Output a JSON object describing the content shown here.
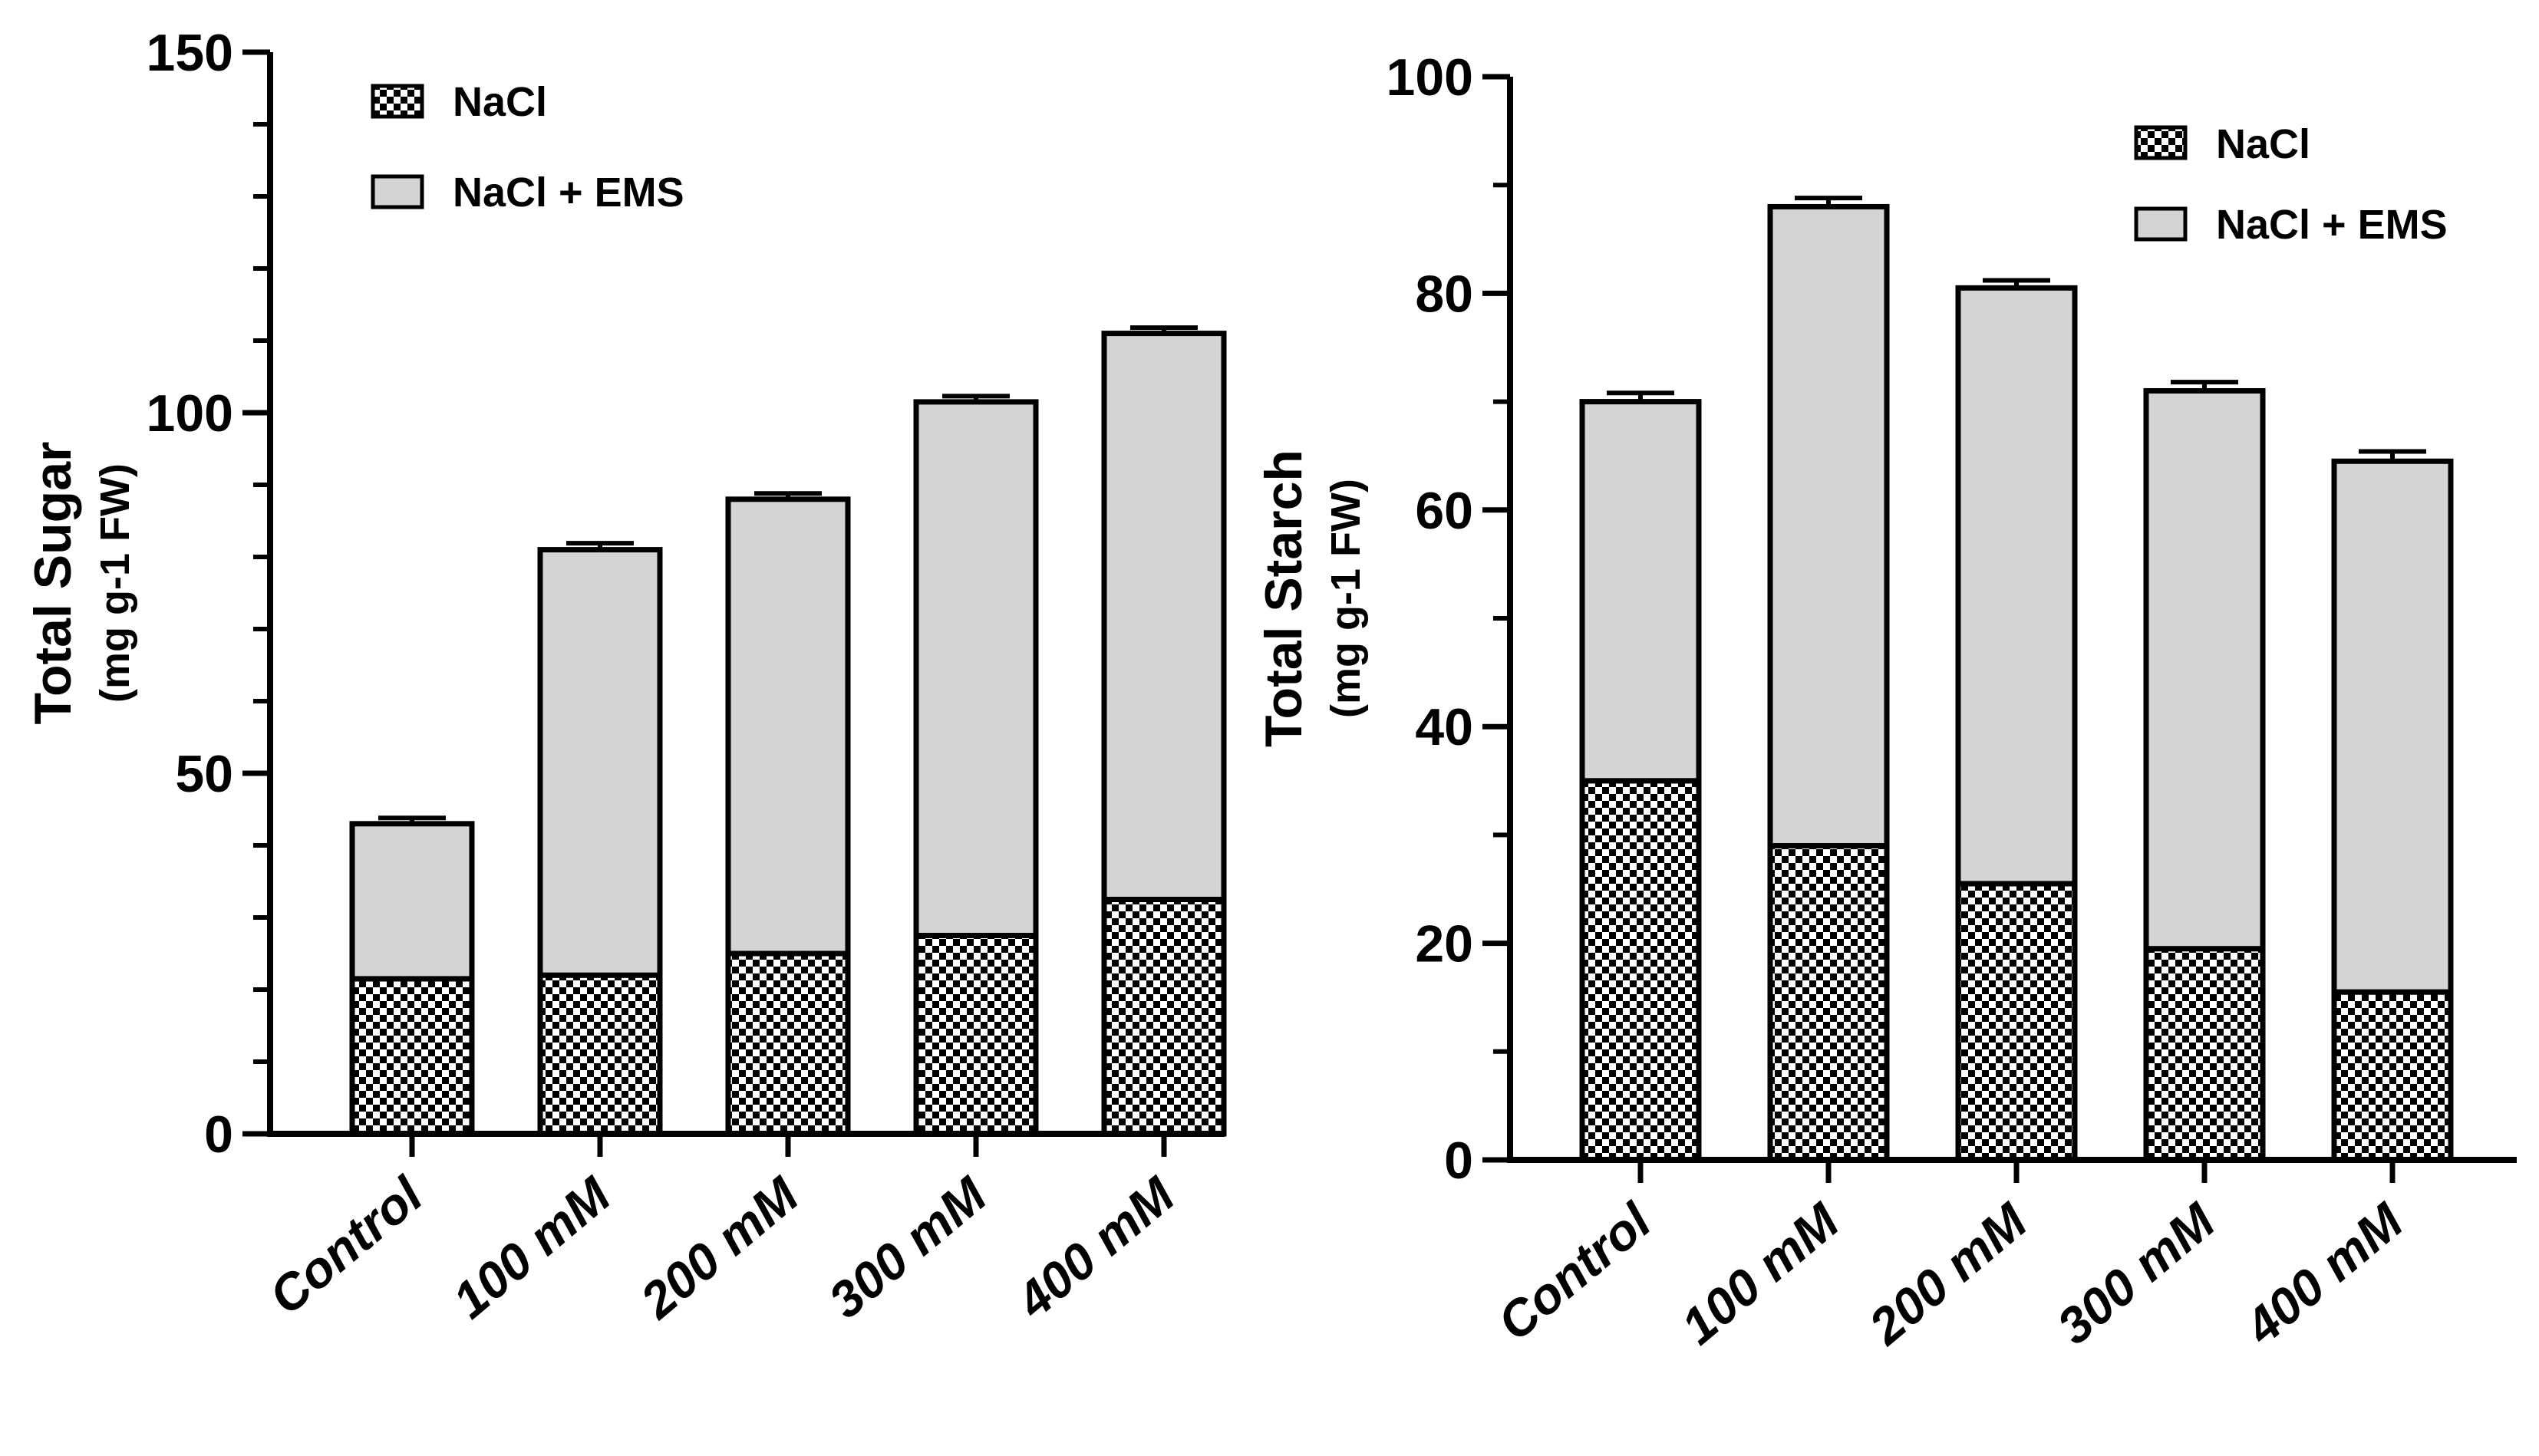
{
  "chart_data": [
    {
      "type": "bar",
      "stacked": true,
      "categories": [
        "Control",
        "100 mM",
        "200 mM",
        "300 mM",
        "400 mM"
      ],
      "series": [
        {
          "name": "NaCl",
          "pattern": "checker",
          "values": [
            21.5,
            22,
            25,
            27.5,
            32.5
          ],
          "errors": [
            0.8,
            0.8,
            0.8,
            0.8,
            0.9
          ]
        },
        {
          "name": "NaCl + EMS",
          "color": "#d4d4d4",
          "values": [
            21.5,
            59,
            63,
            74,
            78.5
          ],
          "errors": [
            0.8,
            0.9,
            0.8,
            0.8,
            0.8
          ]
        }
      ],
      "ytitle": "Total Sugar",
      "yunit": "(mg g-1 FW)",
      "ylim": [
        0,
        150
      ],
      "yticks": [
        "0",
        "50",
        "100",
        "150"
      ],
      "minor_tick_step": 10,
      "legend_position": "top-left"
    },
    {
      "type": "bar",
      "stacked": true,
      "categories": [
        "Control",
        "100 mM",
        "200 mM",
        "300 mM",
        "400 mM"
      ],
      "series": [
        {
          "name": "NaCl",
          "pattern": "checker",
          "values": [
            35,
            29,
            25.5,
            19.5,
            15.5
          ],
          "errors": [
            0.9,
            0.8,
            0.6,
            0.6,
            0.6
          ]
        },
        {
          "name": "NaCl + EMS",
          "color": "#d4d4d4",
          "values": [
            35,
            59,
            55,
            51.5,
            49
          ],
          "errors": [
            0.8,
            0.8,
            0.7,
            0.8,
            0.9
          ]
        }
      ],
      "ytitle": "Total Starch",
      "yunit": "(mg g-1 FW)",
      "ylim": [
        0,
        100
      ],
      "yticks": [
        "0",
        "20",
        "40",
        "60",
        "80",
        "100"
      ],
      "minor_tick_step": 10,
      "legend_position": "top-right"
    }
  ]
}
